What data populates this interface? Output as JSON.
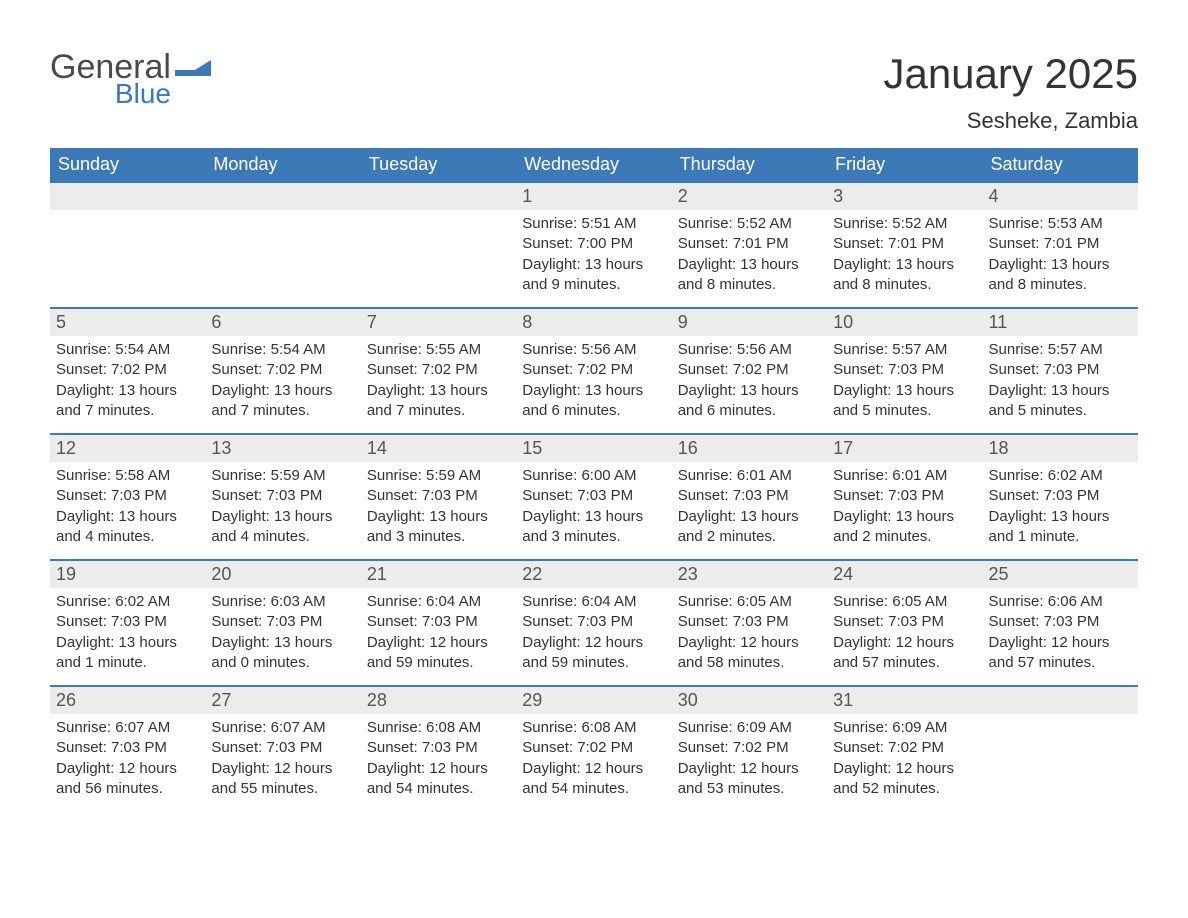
{
  "brand": {
    "word1": "General",
    "word2": "Blue",
    "flag_color": "#3b79b7",
    "text_gray": "#4a4a4a"
  },
  "header": {
    "month_title": "January 2025",
    "location": "Sesheke, Zambia"
  },
  "styling": {
    "header_bg": "#3b79b7",
    "header_text": "#ffffff",
    "daynum_bg": "#ececec",
    "daynum_text": "#555555",
    "border_color": "#3b79b7",
    "body_text": "#333333",
    "page_bg": "#ffffff",
    "title_fontsize": 42,
    "location_fontsize": 22,
    "dow_fontsize": 18,
    "body_fontsize": 15
  },
  "days_of_week": [
    "Sunday",
    "Monday",
    "Tuesday",
    "Wednesday",
    "Thursday",
    "Friday",
    "Saturday"
  ],
  "weeks": [
    [
      {
        "n": "",
        "sunrise": "",
        "sunset": "",
        "daylight": ""
      },
      {
        "n": "",
        "sunrise": "",
        "sunset": "",
        "daylight": ""
      },
      {
        "n": "",
        "sunrise": "",
        "sunset": "",
        "daylight": ""
      },
      {
        "n": "1",
        "sunrise": "Sunrise: 5:51 AM",
        "sunset": "Sunset: 7:00 PM",
        "daylight": "Daylight: 13 hours and 9 minutes."
      },
      {
        "n": "2",
        "sunrise": "Sunrise: 5:52 AM",
        "sunset": "Sunset: 7:01 PM",
        "daylight": "Daylight: 13 hours and 8 minutes."
      },
      {
        "n": "3",
        "sunrise": "Sunrise: 5:52 AM",
        "sunset": "Sunset: 7:01 PM",
        "daylight": "Daylight: 13 hours and 8 minutes."
      },
      {
        "n": "4",
        "sunrise": "Sunrise: 5:53 AM",
        "sunset": "Sunset: 7:01 PM",
        "daylight": "Daylight: 13 hours and 8 minutes."
      }
    ],
    [
      {
        "n": "5",
        "sunrise": "Sunrise: 5:54 AM",
        "sunset": "Sunset: 7:02 PM",
        "daylight": "Daylight: 13 hours and 7 minutes."
      },
      {
        "n": "6",
        "sunrise": "Sunrise: 5:54 AM",
        "sunset": "Sunset: 7:02 PM",
        "daylight": "Daylight: 13 hours and 7 minutes."
      },
      {
        "n": "7",
        "sunrise": "Sunrise: 5:55 AM",
        "sunset": "Sunset: 7:02 PM",
        "daylight": "Daylight: 13 hours and 7 minutes."
      },
      {
        "n": "8",
        "sunrise": "Sunrise: 5:56 AM",
        "sunset": "Sunset: 7:02 PM",
        "daylight": "Daylight: 13 hours and 6 minutes."
      },
      {
        "n": "9",
        "sunrise": "Sunrise: 5:56 AM",
        "sunset": "Sunset: 7:02 PM",
        "daylight": "Daylight: 13 hours and 6 minutes."
      },
      {
        "n": "10",
        "sunrise": "Sunrise: 5:57 AM",
        "sunset": "Sunset: 7:03 PM",
        "daylight": "Daylight: 13 hours and 5 minutes."
      },
      {
        "n": "11",
        "sunrise": "Sunrise: 5:57 AM",
        "sunset": "Sunset: 7:03 PM",
        "daylight": "Daylight: 13 hours and 5 minutes."
      }
    ],
    [
      {
        "n": "12",
        "sunrise": "Sunrise: 5:58 AM",
        "sunset": "Sunset: 7:03 PM",
        "daylight": "Daylight: 13 hours and 4 minutes."
      },
      {
        "n": "13",
        "sunrise": "Sunrise: 5:59 AM",
        "sunset": "Sunset: 7:03 PM",
        "daylight": "Daylight: 13 hours and 4 minutes."
      },
      {
        "n": "14",
        "sunrise": "Sunrise: 5:59 AM",
        "sunset": "Sunset: 7:03 PM",
        "daylight": "Daylight: 13 hours and 3 minutes."
      },
      {
        "n": "15",
        "sunrise": "Sunrise: 6:00 AM",
        "sunset": "Sunset: 7:03 PM",
        "daylight": "Daylight: 13 hours and 3 minutes."
      },
      {
        "n": "16",
        "sunrise": "Sunrise: 6:01 AM",
        "sunset": "Sunset: 7:03 PM",
        "daylight": "Daylight: 13 hours and 2 minutes."
      },
      {
        "n": "17",
        "sunrise": "Sunrise: 6:01 AM",
        "sunset": "Sunset: 7:03 PM",
        "daylight": "Daylight: 13 hours and 2 minutes."
      },
      {
        "n": "18",
        "sunrise": "Sunrise: 6:02 AM",
        "sunset": "Sunset: 7:03 PM",
        "daylight": "Daylight: 13 hours and 1 minute."
      }
    ],
    [
      {
        "n": "19",
        "sunrise": "Sunrise: 6:02 AM",
        "sunset": "Sunset: 7:03 PM",
        "daylight": "Daylight: 13 hours and 1 minute."
      },
      {
        "n": "20",
        "sunrise": "Sunrise: 6:03 AM",
        "sunset": "Sunset: 7:03 PM",
        "daylight": "Daylight: 13 hours and 0 minutes."
      },
      {
        "n": "21",
        "sunrise": "Sunrise: 6:04 AM",
        "sunset": "Sunset: 7:03 PM",
        "daylight": "Daylight: 12 hours and 59 minutes."
      },
      {
        "n": "22",
        "sunrise": "Sunrise: 6:04 AM",
        "sunset": "Sunset: 7:03 PM",
        "daylight": "Daylight: 12 hours and 59 minutes."
      },
      {
        "n": "23",
        "sunrise": "Sunrise: 6:05 AM",
        "sunset": "Sunset: 7:03 PM",
        "daylight": "Daylight: 12 hours and 58 minutes."
      },
      {
        "n": "24",
        "sunrise": "Sunrise: 6:05 AM",
        "sunset": "Sunset: 7:03 PM",
        "daylight": "Daylight: 12 hours and 57 minutes."
      },
      {
        "n": "25",
        "sunrise": "Sunrise: 6:06 AM",
        "sunset": "Sunset: 7:03 PM",
        "daylight": "Daylight: 12 hours and 57 minutes."
      }
    ],
    [
      {
        "n": "26",
        "sunrise": "Sunrise: 6:07 AM",
        "sunset": "Sunset: 7:03 PM",
        "daylight": "Daylight: 12 hours and 56 minutes."
      },
      {
        "n": "27",
        "sunrise": "Sunrise: 6:07 AM",
        "sunset": "Sunset: 7:03 PM",
        "daylight": "Daylight: 12 hours and 55 minutes."
      },
      {
        "n": "28",
        "sunrise": "Sunrise: 6:08 AM",
        "sunset": "Sunset: 7:03 PM",
        "daylight": "Daylight: 12 hours and 54 minutes."
      },
      {
        "n": "29",
        "sunrise": "Sunrise: 6:08 AM",
        "sunset": "Sunset: 7:02 PM",
        "daylight": "Daylight: 12 hours and 54 minutes."
      },
      {
        "n": "30",
        "sunrise": "Sunrise: 6:09 AM",
        "sunset": "Sunset: 7:02 PM",
        "daylight": "Daylight: 12 hours and 53 minutes."
      },
      {
        "n": "31",
        "sunrise": "Sunrise: 6:09 AM",
        "sunset": "Sunset: 7:02 PM",
        "daylight": "Daylight: 12 hours and 52 minutes."
      },
      {
        "n": "",
        "sunrise": "",
        "sunset": "",
        "daylight": ""
      }
    ]
  ]
}
